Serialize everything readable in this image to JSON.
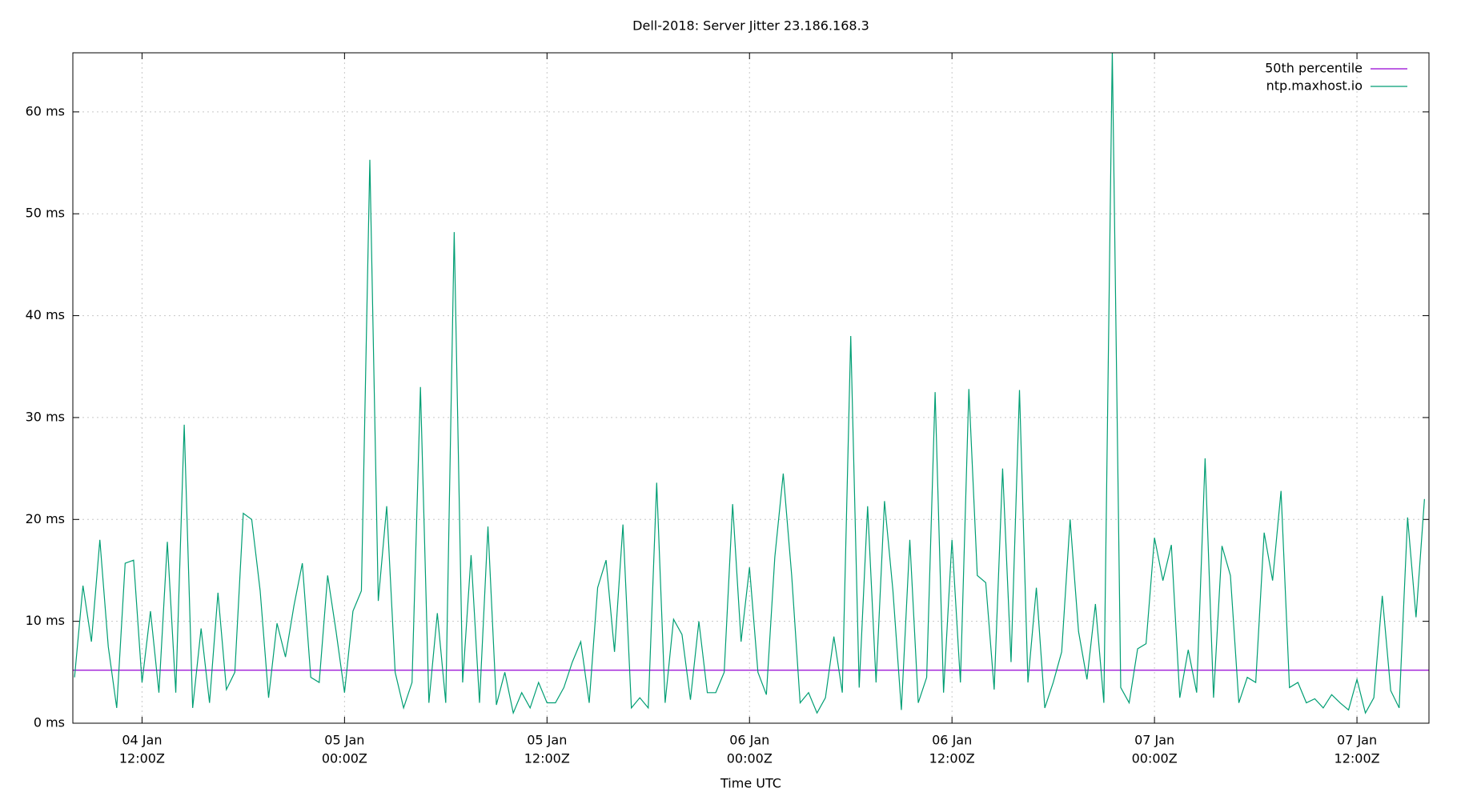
{
  "chart_data": {
    "type": "line",
    "title": "Dell-2018: Server Jitter 23.186.168.3",
    "x_label": "Time UTC",
    "grid": true,
    "legend": "top-right",
    "xlim": [
      "04 Jan 07:54",
      "07 Jan 16:16"
    ],
    "xticks": [
      {
        "value": "04 Jan 12:00",
        "label": [
          "04 Jan",
          "12:00Z"
        ]
      },
      {
        "value": "05 Jan 00:00",
        "label": [
          "05 Jan",
          "00:00Z"
        ]
      },
      {
        "value": "05 Jan 12:00",
        "label": [
          "05 Jan",
          "12:00Z"
        ]
      },
      {
        "value": "06 Jan 00:00",
        "label": [
          "06 Jan",
          "00:00Z"
        ]
      },
      {
        "value": "06 Jan 12:00",
        "label": [
          "06 Jan",
          "12:00Z"
        ]
      },
      {
        "value": "07 Jan 00:00",
        "label": [
          "07 Jan",
          "00:00Z"
        ]
      },
      {
        "value": "07 Jan 12:00",
        "label": [
          "07 Jan",
          "12:00Z"
        ]
      }
    ],
    "ylim": [
      0,
      65.8
    ],
    "yticks": [
      {
        "value": 0,
        "label": "0 ms"
      },
      {
        "value": 10,
        "label": "10 ms"
      },
      {
        "value": 20,
        "label": "20 ms"
      },
      {
        "value": 30,
        "label": "30 ms"
      },
      {
        "value": 40,
        "label": "40 ms"
      },
      {
        "value": 50,
        "label": "50 ms"
      },
      {
        "value": 60,
        "label": "60 ms"
      }
    ],
    "reference_lines": [
      {
        "name": "50th percentile",
        "value": 5.2,
        "color": "#9400d3"
      }
    ],
    "x": [
      "04 Jan 08:00",
      "04 Jan 08:30",
      "04 Jan 09:00",
      "04 Jan 09:30",
      "04 Jan 10:00",
      "04 Jan 10:30",
      "04 Jan 11:00",
      "04 Jan 11:30",
      "04 Jan 12:00",
      "04 Jan 12:30",
      "04 Jan 13:00",
      "04 Jan 13:30",
      "04 Jan 14:00",
      "04 Jan 14:30",
      "04 Jan 15:00",
      "04 Jan 15:30",
      "04 Jan 16:00",
      "04 Jan 16:30",
      "04 Jan 17:00",
      "04 Jan 17:30",
      "04 Jan 18:00",
      "04 Jan 18:30",
      "04 Jan 19:00",
      "04 Jan 19:30",
      "04 Jan 20:00",
      "04 Jan 20:30",
      "04 Jan 21:00",
      "04 Jan 21:30",
      "04 Jan 22:00",
      "04 Jan 22:30",
      "04 Jan 23:00",
      "04 Jan 23:30",
      "05 Jan 00:00",
      "05 Jan 00:30",
      "05 Jan 01:00",
      "05 Jan 01:30",
      "05 Jan 02:00",
      "05 Jan 02:30",
      "05 Jan 03:00",
      "05 Jan 03:30",
      "05 Jan 04:00",
      "05 Jan 04:30",
      "05 Jan 05:00",
      "05 Jan 05:30",
      "05 Jan 06:00",
      "05 Jan 06:30",
      "05 Jan 07:00",
      "05 Jan 07:30",
      "05 Jan 08:00",
      "05 Jan 08:30",
      "05 Jan 09:00",
      "05 Jan 09:30",
      "05 Jan 10:00",
      "05 Jan 10:30",
      "05 Jan 11:00",
      "05 Jan 11:30",
      "05 Jan 12:00",
      "05 Jan 12:30",
      "05 Jan 13:00",
      "05 Jan 13:30",
      "05 Jan 14:00",
      "05 Jan 14:30",
      "05 Jan 15:00",
      "05 Jan 15:30",
      "05 Jan 16:00",
      "05 Jan 16:30",
      "05 Jan 17:00",
      "05 Jan 17:30",
      "05 Jan 18:00",
      "05 Jan 18:30",
      "05 Jan 19:00",
      "05 Jan 19:30",
      "05 Jan 20:00",
      "05 Jan 20:30",
      "05 Jan 21:00",
      "05 Jan 21:30",
      "05 Jan 22:00",
      "05 Jan 22:30",
      "05 Jan 23:00",
      "05 Jan 23:30",
      "06 Jan 00:00",
      "06 Jan 00:30",
      "06 Jan 01:00",
      "06 Jan 01:30",
      "06 Jan 02:00",
      "06 Jan 02:30",
      "06 Jan 03:00",
      "06 Jan 03:30",
      "06 Jan 04:00",
      "06 Jan 04:30",
      "06 Jan 05:00",
      "06 Jan 05:30",
      "06 Jan 06:00",
      "06 Jan 06:30",
      "06 Jan 07:00",
      "06 Jan 07:30",
      "06 Jan 08:00",
      "06 Jan 08:30",
      "06 Jan 09:00",
      "06 Jan 09:30",
      "06 Jan 10:00",
      "06 Jan 10:30",
      "06 Jan 11:00",
      "06 Jan 11:30",
      "06 Jan 12:00",
      "06 Jan 12:30",
      "06 Jan 13:00",
      "06 Jan 13:30",
      "06 Jan 14:00",
      "06 Jan 14:30",
      "06 Jan 15:00",
      "06 Jan 15:30",
      "06 Jan 16:00",
      "06 Jan 16:30",
      "06 Jan 17:00",
      "06 Jan 17:30",
      "06 Jan 18:00",
      "06 Jan 18:30",
      "06 Jan 19:00",
      "06 Jan 19:30",
      "06 Jan 20:00",
      "06 Jan 20:30",
      "06 Jan 21:00",
      "06 Jan 21:30",
      "06 Jan 22:00",
      "06 Jan 22:30",
      "06 Jan 23:00",
      "06 Jan 23:30",
      "07 Jan 00:00",
      "07 Jan 00:30",
      "07 Jan 01:00",
      "07 Jan 01:30",
      "07 Jan 02:00",
      "07 Jan 02:30",
      "07 Jan 03:00",
      "07 Jan 03:30",
      "07 Jan 04:00",
      "07 Jan 04:30",
      "07 Jan 05:00",
      "07 Jan 05:30",
      "07 Jan 06:00",
      "07 Jan 06:30",
      "07 Jan 07:00",
      "07 Jan 07:30",
      "07 Jan 08:00",
      "07 Jan 08:30",
      "07 Jan 09:00",
      "07 Jan 09:30",
      "07 Jan 10:00",
      "07 Jan 10:30",
      "07 Jan 11:00",
      "07 Jan 11:30",
      "07 Jan 12:00",
      "07 Jan 12:30",
      "07 Jan 13:00",
      "07 Jan 13:30",
      "07 Jan 14:00",
      "07 Jan 14:30",
      "07 Jan 15:00",
      "07 Jan 15:30",
      "07 Jan 16:00"
    ],
    "series": [
      {
        "name": "ntp.maxhost.io",
        "color": "#009e73",
        "values": [
          4.5,
          13.5,
          8,
          18,
          7.5,
          1.5,
          15.7,
          16,
          4,
          11,
          3,
          17.8,
          3,
          29.3,
          1.5,
          9.3,
          2,
          12.8,
          3.3,
          5,
          20.6,
          20,
          13,
          2.5,
          9.8,
          6.5,
          11.5,
          15.7,
          4.5,
          4,
          14.5,
          9,
          3,
          11,
          13,
          55.3,
          12,
          21.3,
          5,
          1.5,
          4,
          33,
          2,
          10.8,
          2,
          48.2,
          4,
          16.5,
          2,
          19.3,
          1.8,
          5,
          1,
          3,
          1.5,
          4,
          2,
          2,
          3.5,
          6,
          8,
          2,
          13.3,
          16,
          7,
          19.5,
          1.5,
          2.5,
          1.5,
          23.6,
          2,
          10.2,
          8.7,
          2.3,
          10,
          3,
          3,
          5,
          21.5,
          8,
          15.3,
          5,
          2.8,
          16.3,
          24.5,
          14.5,
          2,
          3,
          1,
          2.5,
          8.5,
          3,
          38,
          3.5,
          21.3,
          4,
          21.8,
          13,
          1.3,
          18,
          2,
          4.5,
          32.5,
          3,
          18,
          4,
          32.8,
          14.5,
          13.8,
          3.3,
          25,
          6,
          32.7,
          4,
          13.3,
          1.5,
          4,
          7,
          20,
          9,
          4.3,
          11.7,
          2,
          66,
          3.5,
          2,
          7.3,
          7.8,
          18.2,
          14,
          17.5,
          2.5,
          7.2,
          3,
          26,
          2.5,
          17.4,
          14.5,
          2,
          4.5,
          4,
          18.7,
          14,
          22.8,
          3.5,
          4,
          2,
          2.4,
          1.5,
          2.8,
          2,
          1.3,
          4.3,
          1,
          2.5,
          12.5,
          3.2,
          1.5,
          20.2,
          10.4,
          22
        ]
      }
    ]
  }
}
